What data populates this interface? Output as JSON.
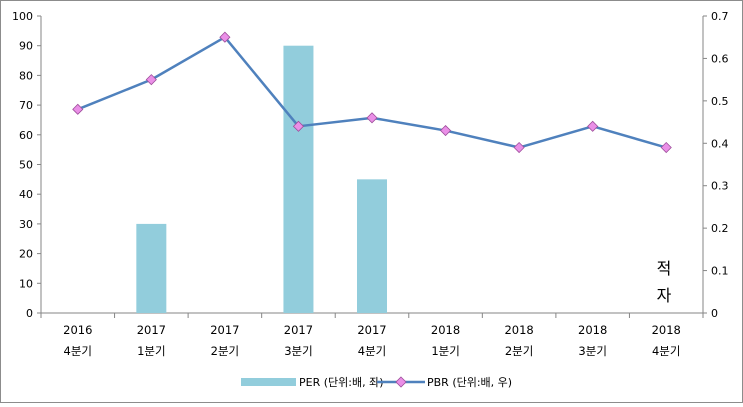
{
  "chart_data": {
    "type": "bar+line",
    "categories": [
      {
        "year": "2016",
        "quarter": "4분기"
      },
      {
        "year": "2017",
        "quarter": "1분기"
      },
      {
        "year": "2017",
        "quarter": "2분기"
      },
      {
        "year": "2017",
        "quarter": "3분기"
      },
      {
        "year": "2017",
        "quarter": "4분기"
      },
      {
        "year": "2018",
        "quarter": "1분기"
      },
      {
        "year": "2018",
        "quarter": "2분기"
      },
      {
        "year": "2018",
        "quarter": "3분기"
      },
      {
        "year": "2018",
        "quarter": "4분기"
      }
    ],
    "series": [
      {
        "name": "PER (단위:배, 좌)",
        "type": "bar",
        "axis": "left",
        "color": "#92cddc",
        "values": [
          null,
          30,
          null,
          90,
          45,
          null,
          null,
          null,
          null
        ]
      },
      {
        "name": "PBR (단위:배, 우)",
        "type": "line",
        "axis": "right",
        "color": "#4f81bd",
        "marker_color": "#ea8fe7",
        "values": [
          0.48,
          0.55,
          0.65,
          0.44,
          0.46,
          0.43,
          0.39,
          0.44,
          0.39
        ]
      }
    ],
    "y_left": {
      "min": 0,
      "max": 100,
      "step": 10,
      "ticks": [
        "0",
        "10",
        "20",
        "30",
        "40",
        "50",
        "60",
        "70",
        "80",
        "90",
        "100"
      ]
    },
    "y_right": {
      "min": 0,
      "max": 0.7,
      "step": 0.1,
      "ticks": [
        "0",
        "0.1",
        "0.2",
        "0.3",
        "0.4",
        "0.5",
        "0.6",
        "0.7"
      ]
    },
    "annotation": {
      "lines": [
        "적",
        "자"
      ]
    },
    "legend": {
      "position": "bottom"
    },
    "grid": false
  }
}
